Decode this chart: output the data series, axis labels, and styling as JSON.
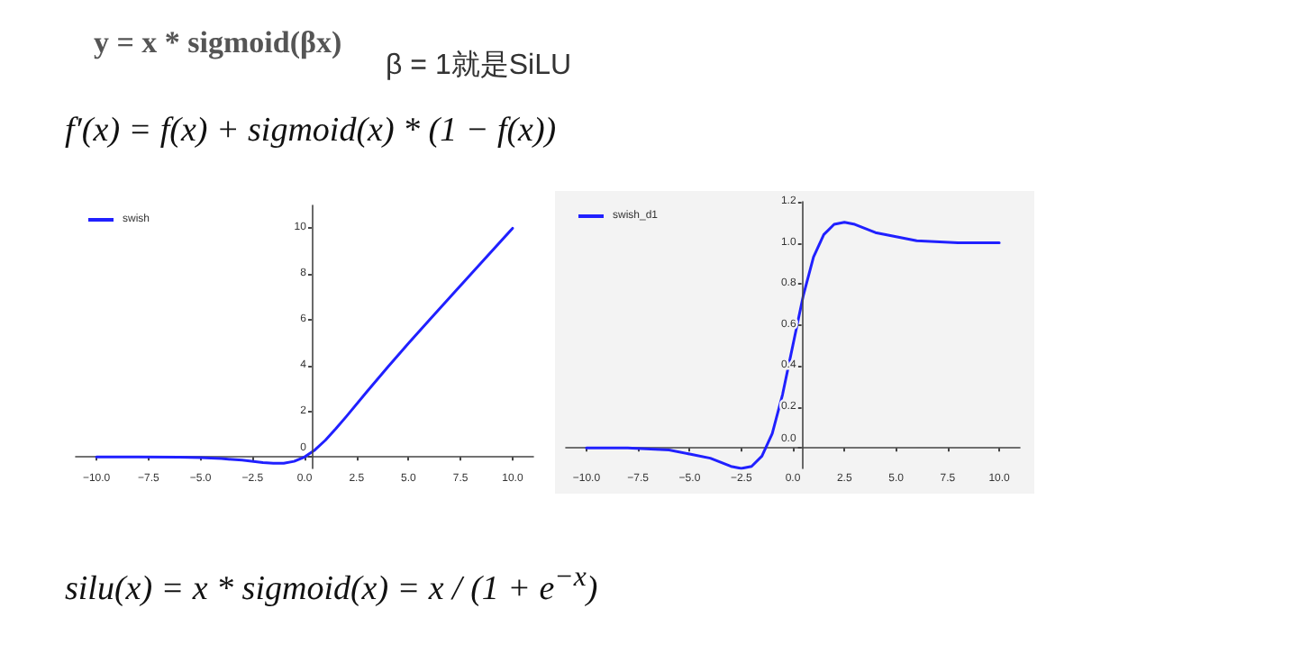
{
  "chart_data": [
    {
      "type": "line",
      "annotations": [
        "y = x * sigmoid(βx)",
        "β = 1就是SiLU",
        "f′(x) = f(x) + sigmoid(x) * (1 − f(x))",
        "silu(x) = x * sigmoid(x) = x / (1 + e$^{−x}$)"
      ],
      "x": [
        -10,
        -8,
        -6,
        -5,
        -4,
        -3,
        -2,
        -1.5,
        -1,
        -0.5,
        0,
        0.5,
        1,
        1.5,
        2,
        3,
        4,
        5,
        6,
        8,
        10
      ],
      "series": [
        {
          "name": "swish",
          "color": "#2020ff",
          "values": [
            0,
            0,
            -0.01,
            -0.03,
            -0.07,
            -0.14,
            -0.24,
            -0.27,
            -0.27,
            -0.19,
            0,
            0.31,
            0.73,
            1.23,
            1.76,
            2.86,
            3.93,
            4.97,
            5.99,
            8.0,
            10.0
          ]
        }
      ],
      "xlim": [
        -11,
        11
      ],
      "ylim": [
        -0.5,
        11
      ],
      "xticks": [
        {
          "value": -10,
          "label": "−10.0"
        },
        {
          "value": -7.5,
          "label": "−7.5"
        },
        {
          "value": -5,
          "label": "−5.0"
        },
        {
          "value": -2.5,
          "label": "−2.5"
        },
        {
          "value": 0,
          "label": "0.0"
        },
        {
          "value": 2.5,
          "label": "2.5"
        },
        {
          "value": 5,
          "label": "5.0"
        },
        {
          "value": 7.5,
          "label": "7.5"
        },
        {
          "value": 10,
          "label": "10.0"
        }
      ],
      "yticks": [
        0,
        2,
        4,
        6,
        8,
        10
      ],
      "legend": "top left",
      "grid": false,
      "marker": "none",
      "line_style": "solid"
    },
    {
      "type": "line",
      "x": [
        -10,
        -8,
        -6,
        -5,
        -4,
        -3,
        -2.5,
        -2,
        -1.5,
        -1,
        -0.5,
        0,
        0.5,
        1,
        1.5,
        2,
        2.5,
        3,
        4,
        5,
        6,
        8,
        10
      ],
      "series": [
        {
          "name": "swish_d1",
          "color": "#2020ff",
          "values": [
            0,
            0,
            -0.01,
            -0.03,
            -0.05,
            -0.09,
            -0.1,
            -0.09,
            -0.04,
            0.07,
            0.26,
            0.5,
            0.74,
            0.93,
            1.04,
            1.09,
            1.1,
            1.09,
            1.05,
            1.03,
            1.01,
            1.0,
            1.0
          ]
        }
      ],
      "xlim": [
        -11,
        11
      ],
      "ylim": [
        -0.1,
        1.2
      ],
      "xticks": [
        {
          "value": -10,
          "label": "−10.0"
        },
        {
          "value": -7.5,
          "label": "−7.5"
        },
        {
          "value": -5,
          "label": "−5.0"
        },
        {
          "value": -2.5,
          "label": "−2.5"
        },
        {
          "value": 0,
          "label": "0.0"
        },
        {
          "value": 2.5,
          "label": "2.5"
        },
        {
          "value": 5,
          "label": "5.0"
        },
        {
          "value": 7.5,
          "label": "7.5"
        },
        {
          "value": 10,
          "label": "10.0"
        }
      ],
      "yticks": [
        {
          "value": 0,
          "label": "0.0"
        },
        {
          "value": 0.2,
          "label": "0.2"
        },
        {
          "value": 0.4,
          "label": "0.4"
        },
        {
          "value": 0.6,
          "label": "0.6"
        },
        {
          "value": 0.8,
          "label": "0.8"
        },
        {
          "value": 1.0,
          "label": "1.0"
        },
        {
          "value": 1.2,
          "label": "1.2"
        }
      ],
      "legend": "top left",
      "grid": false,
      "marker": "none",
      "line_style": "solid"
    }
  ]
}
